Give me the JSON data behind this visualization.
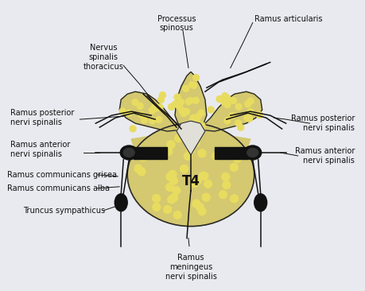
{
  "bg_color": "#e8eaf0",
  "fig_bg": "#e8eaf0",
  "labels": {
    "processus_spinosus": "Processus\nspinosus",
    "ramus_articularis": "Ramus articularis",
    "nervus_spinalis": "Nervus\nspinalis\nthoracicus",
    "ramus_post_left": "Ramus posterior\nnervi spinalis",
    "ramus_ant_left": "Ramus anterior\nnervi spinalis",
    "ramus_comm_grisea": "Ramus communicans grisea",
    "ramus_comm_alba": "Ramus communicans alba",
    "truncus": "Truncus sympathicus",
    "ramus_post_right": "Ramus posterior\nnervi spinalis",
    "ramus_ant_right": "Ramus anterior\nnervi spinalis",
    "ramus_meningeus": "Ramus\nmeningeus\nnervi spinalis",
    "T4": "T4"
  },
  "vert_fill": "#d4c870",
  "vert_gray": "#c8c8b0",
  "outline": "#2a2a2a",
  "nerve_color": "#111111",
  "white": "#ffffff",
  "dot_color": "#e8dc60"
}
